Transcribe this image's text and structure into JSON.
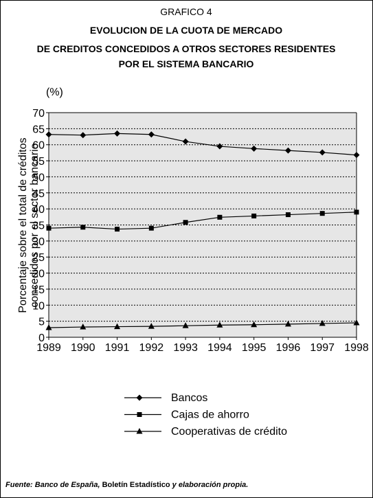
{
  "chart_data": {
    "type": "line",
    "label": "GRAFICO 4",
    "title": [
      "EVOLUCION DE LA CUOTA DE MERCADO",
      "DE CREDITOS CONCEDIDOS A OTROS SECTORES RESIDENTES",
      "POR EL SISTEMA BANCARIO"
    ],
    "y_unit": "(%)",
    "ylabel": [
      "Porcentaje sobre el total de créditos",
      "concedidos por el sector bancario"
    ],
    "x": [
      1989,
      1990,
      1991,
      1992,
      1993,
      1994,
      1995,
      1996,
      1997,
      1998
    ],
    "xlim": [
      1989,
      1998
    ],
    "xticks": [
      1989,
      1990,
      1991,
      1992,
      1993,
      1994,
      1995,
      1996,
      1997,
      1998
    ],
    "ylim": [
      0,
      70
    ],
    "yticks": [
      0,
      5,
      10,
      15,
      20,
      25,
      30,
      35,
      40,
      45,
      50,
      55,
      60,
      65,
      70
    ],
    "grid": true,
    "series": [
      {
        "name": "Bancos",
        "color": "#000000",
        "marker": "diamond",
        "values": [
          63.2,
          63,
          63.5,
          63.2,
          61,
          59.5,
          58.8,
          58.2,
          57.6,
          56.8
        ]
      },
      {
        "name": "Cajas de ahorro",
        "color": "#000000",
        "marker": "square",
        "values": [
          34,
          34.3,
          33.7,
          34,
          35.8,
          37.4,
          37.8,
          38.2,
          38.6,
          39
        ]
      },
      {
        "name": "Cooperativas de crédito",
        "color": "#000000",
        "marker": "triangle",
        "values": [
          3,
          3.2,
          3.3,
          3.4,
          3.6,
          3.8,
          3.9,
          4.1,
          4.3,
          4.5
        ]
      }
    ],
    "source": [
      "Fuente: Banco de España, ",
      "Boletín Estadístico",
      " y elaboración propia."
    ]
  }
}
